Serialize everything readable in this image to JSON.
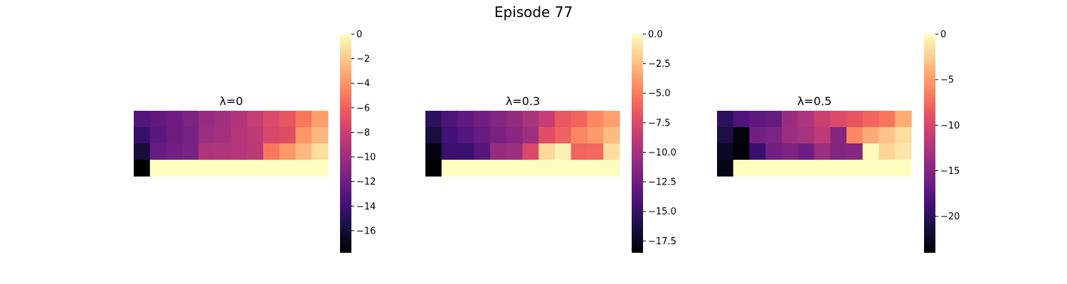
{
  "figure": {
    "suptitle": "Episode 77"
  },
  "chart_data": [
    {
      "type": "heatmap",
      "title": "λ=0",
      "colormap": "magma",
      "vmin": -17.8,
      "vmax": 0,
      "colorbar_ticks": [
        0,
        -2,
        -4,
        -6,
        -8,
        -10,
        -12,
        -14,
        -16
      ],
      "colorbar_tick_labels": [
        "0",
        "−2",
        "−4",
        "−6",
        "−8",
        "−10",
        "−12",
        "−14",
        "−16"
      ],
      "grid": false,
      "values": [
        [
          -13.2,
          -12.6,
          -12.1,
          -11.4,
          -10.3,
          -9.8,
          -9.2,
          -8.3,
          -7.2,
          -6.5,
          -5.0,
          -3.6
        ],
        [
          -14.4,
          -12.9,
          -12.1,
          -11.7,
          -10.1,
          -9.7,
          -9.0,
          -8.6,
          -7.4,
          -7.0,
          -3.9,
          -2.7
        ],
        [
          -15.9,
          -12.4,
          -11.9,
          -11.6,
          -9.3,
          -9.2,
          -9.0,
          -8.7,
          -5.0,
          -3.8,
          -2.6,
          -1.2
        ],
        [
          -17.8,
          0,
          0,
          0,
          0,
          0,
          0,
          0,
          0,
          0,
          0,
          0
        ]
      ]
    },
    {
      "type": "heatmap",
      "title": "λ=0.3",
      "colormap": "magma",
      "vmin": -18.5,
      "vmax": 0,
      "colorbar_ticks": [
        0,
        -2.5,
        -5,
        -7.5,
        -10,
        -12.5,
        -15,
        -17.5
      ],
      "colorbar_tick_labels": [
        "0.0",
        "−2.5",
        "−5.0",
        "−7.5",
        "−10.0",
        "−12.5",
        "−15.0",
        "−17.5"
      ],
      "grid": false,
      "values": [
        [
          -15.3,
          -14.0,
          -13.1,
          -12.4,
          -11.6,
          -10.9,
          -9.8,
          -8.6,
          -6.6,
          -6.0,
          -4.6,
          -3.7
        ],
        [
          -16.4,
          -14.4,
          -13.6,
          -12.9,
          -12.0,
          -11.3,
          -10.3,
          -7.2,
          -6.2,
          -4.7,
          -3.9,
          -2.6
        ],
        [
          -18.0,
          -14.7,
          -14.8,
          -13.5,
          -10.7,
          -10.4,
          -7.5,
          -1.5,
          -0.5,
          -6.1,
          -5.9,
          -1.3
        ],
        [
          -18.5,
          0,
          0,
          0,
          0,
          0,
          0,
          0,
          0,
          0,
          0,
          0
        ]
      ]
    },
    {
      "type": "heatmap",
      "title": "λ=0.5",
      "colormap": "magma",
      "vmin": -24,
      "vmax": 0,
      "colorbar_ticks": [
        0,
        -5,
        -10,
        -15,
        -20
      ],
      "colorbar_tick_labels": [
        "0",
        "−5",
        "−10",
        "−15",
        "−20"
      ],
      "grid": false,
      "values": [
        [
          -20.0,
          -18.0,
          -17.2,
          -16.7,
          -13.7,
          -12.5,
          -10.8,
          -9.6,
          -8.8,
          -7.8,
          -6.9,
          -4.2
        ],
        [
          -21.0,
          -23.5,
          -16.0,
          -15.4,
          -13.6,
          -12.9,
          -11.6,
          -15.0,
          -6.0,
          -4.3,
          -2.9,
          -1.6
        ],
        [
          -22.3,
          -23.8,
          -19.3,
          -16.1,
          -15.3,
          -16.2,
          -13.6,
          -15.1,
          -14.8,
          -0.1,
          -2.1,
          -1.2
        ],
        [
          -23.0,
          0,
          0,
          0,
          0,
          0,
          0,
          0,
          0,
          0,
          0,
          0
        ]
      ]
    }
  ]
}
